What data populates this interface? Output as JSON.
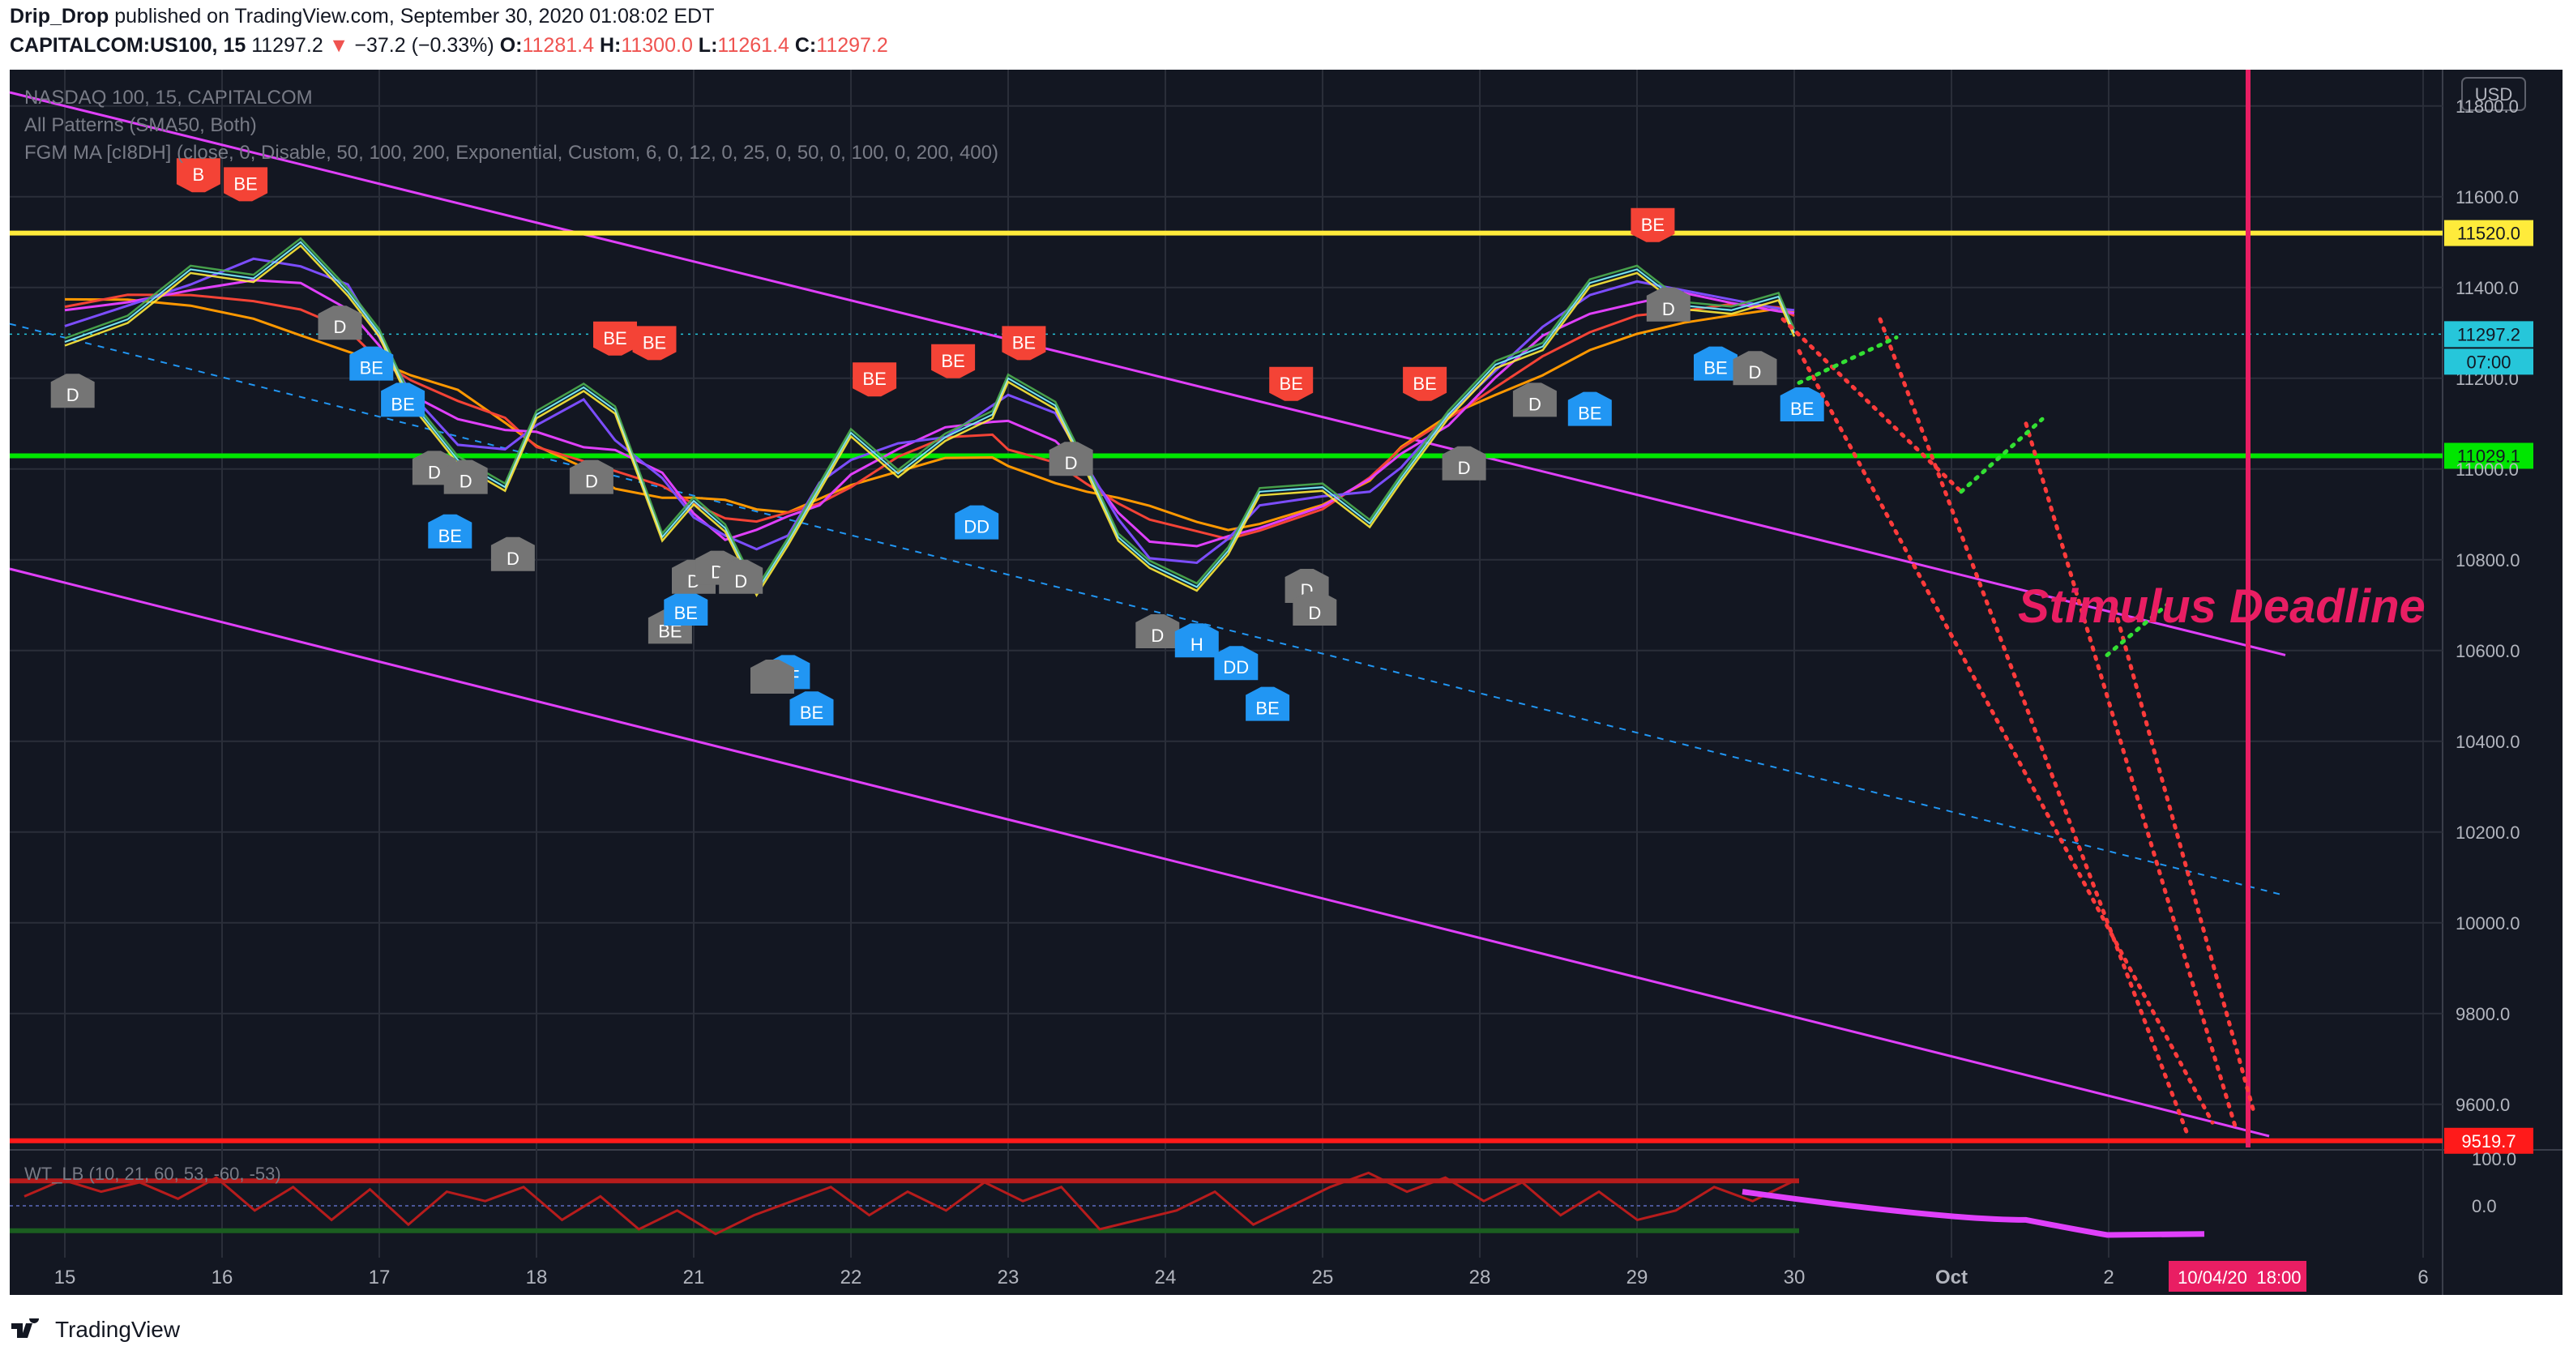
{
  "header": {
    "author": "Drip_Drop",
    "published_text": "published on TradingView.com, September 30, 2020 01:08:02 EDT",
    "symbol": "CAPITALCOM:US100, 15",
    "last": "11297.2",
    "change": "−37.2 (−0.33%)",
    "o_label": "O:",
    "o": "11281.4",
    "h_label": "H:",
    "h": "11300.0",
    "l_label": "L:",
    "l": "11261.4",
    "c_label": "C:",
    "c": "11297.2"
  },
  "legend": {
    "title": "NASDAQ 100, 15, CAPITALCOM",
    "ind1": "All Patterns (SMA50, Both)",
    "ind2": "FGM MA [cI8DH] (close, 0, Disable, 50, 100, 200, Exponential, Custom, 6, 0, 12, 0, 25, 0, 50, 0, 100, 0, 200, 400)",
    "osc": "WT_LB (10, 21, 60, 53, -60, -53)"
  },
  "annotation": "Stimulus Deadline",
  "footer": {
    "brand": "TradingView"
  },
  "colors": {
    "background": "#131722",
    "resistance": "#ffeb3b",
    "support_green": "#00e600",
    "support_red": "#ff1a1a",
    "channel": "#e040fb",
    "deadline": "#e91e63",
    "dotted_red": "#ff3b3b",
    "dotted_green": "#33e033"
  },
  "chart_data": {
    "type": "line",
    "currency": "USD",
    "y_ticks": [
      11800,
      11600,
      11400,
      11200,
      11000,
      10800,
      10600,
      10400,
      10200,
      10000,
      9800,
      9600
    ],
    "ylim": [
      9480,
      11880
    ],
    "x_ticks": [
      "15",
      "16",
      "17",
      "18",
      "21",
      "22",
      "23",
      "24",
      "25",
      "28",
      "29",
      "30",
      "Oct",
      "2",
      "6"
    ],
    "levels": [
      {
        "name": "resistance",
        "value": 11520.0,
        "label": "11520.0"
      },
      {
        "name": "support",
        "value": 11029.1,
        "label": "11029.1"
      },
      {
        "name": "target",
        "value": 9519.7,
        "label": "9519.7"
      }
    ],
    "last_price": {
      "value": 11297.2,
      "label": "11297.2",
      "countdown": "07:00"
    },
    "deadline": {
      "date_label": "10/04/20",
      "time_label": "18:00"
    },
    "price_series": [
      [
        0,
        11280
      ],
      [
        0.4,
        11330
      ],
      [
        0.8,
        11440
      ],
      [
        1.2,
        11420
      ],
      [
        1.5,
        11500
      ],
      [
        1.8,
        11390
      ],
      [
        2.0,
        11300
      ],
      [
        2.2,
        11150
      ],
      [
        2.5,
        11020
      ],
      [
        2.8,
        10960
      ],
      [
        3.0,
        11120
      ],
      [
        3.3,
        11180
      ],
      [
        3.5,
        11130
      ],
      [
        3.8,
        10850
      ],
      [
        4.0,
        10930
      ],
      [
        4.2,
        10870
      ],
      [
        4.4,
        10730
      ],
      [
        4.6,
        10840
      ],
      [
        4.8,
        10960
      ],
      [
        5.0,
        11080
      ],
      [
        5.3,
        10990
      ],
      [
        5.6,
        11070
      ],
      [
        5.9,
        11120
      ],
      [
        6.0,
        11200
      ],
      [
        6.3,
        11140
      ],
      [
        6.5,
        11000
      ],
      [
        6.7,
        10850
      ],
      [
        6.9,
        10790
      ],
      [
        7.2,
        10740
      ],
      [
        7.4,
        10820
      ],
      [
        7.6,
        10950
      ],
      [
        8.0,
        10960
      ],
      [
        8.3,
        10880
      ],
      [
        8.5,
        10980
      ],
      [
        8.8,
        11120
      ],
      [
        9.1,
        11230
      ],
      [
        9.4,
        11270
      ],
      [
        9.7,
        11410
      ],
      [
        10.0,
        11440
      ],
      [
        10.3,
        11360
      ],
      [
        10.6,
        11350
      ],
      [
        10.9,
        11380
      ],
      [
        11.0,
        11300
      ]
    ],
    "oscillator": {
      "ob_level": 53,
      "os_level": -53,
      "ticks": [
        100.0,
        0.0
      ],
      "values": [
        20,
        55,
        30,
        50,
        15,
        60,
        -10,
        40,
        -30,
        35,
        -40,
        30,
        10,
        40,
        -30,
        20,
        -50,
        -10,
        -60,
        -20,
        10,
        40,
        -20,
        30,
        -10,
        50,
        10,
        40,
        -50,
        -30,
        -10,
        30,
        -40,
        0,
        40,
        70,
        30,
        60,
        10,
        50,
        -20,
        30,
        -30,
        -10,
        40,
        10,
        50
      ]
    },
    "patterns": [
      {
        "t": "B",
        "x": 0.85,
        "y": 11610,
        "c": "bear"
      },
      {
        "t": "BE",
        "x": 1.15,
        "y": 11590,
        "c": "bear"
      },
      {
        "t": "D",
        "x": 0.05,
        "y": 11210,
        "c": "neutral"
      },
      {
        "t": "D",
        "x": 1.75,
        "y": 11360,
        "c": "neutral"
      },
      {
        "t": "BE",
        "x": 1.95,
        "y": 11270,
        "c": "bull"
      },
      {
        "t": "BE",
        "x": 2.15,
        "y": 11190,
        "c": "bull"
      },
      {
        "t": "D",
        "x": 2.35,
        "y": 11040,
        "c": "neutral"
      },
      {
        "t": "D",
        "x": 2.55,
        "y": 11020,
        "c": "neutral"
      },
      {
        "t": "BE",
        "x": 2.45,
        "y": 10900,
        "c": "bull"
      },
      {
        "t": "D",
        "x": 2.85,
        "y": 10850,
        "c": "neutral"
      },
      {
        "t": "D",
        "x": 3.35,
        "y": 11020,
        "c": "neutral"
      },
      {
        "t": "BE",
        "x": 3.5,
        "y": 11250,
        "c": "bear"
      },
      {
        "t": "BE",
        "x": 3.75,
        "y": 11240,
        "c": "bear"
      },
      {
        "t": "BE",
        "x": 3.85,
        "y": 10690,
        "c": "neutral"
      },
      {
        "t": "BE",
        "x": 3.95,
        "y": 10730,
        "c": "bull"
      },
      {
        "t": "D",
        "x": 4.0,
        "y": 10800,
        "c": "neutral"
      },
      {
        "t": "D",
        "x": 4.15,
        "y": 10820,
        "c": "neutral"
      },
      {
        "t": "D",
        "x": 4.3,
        "y": 10800,
        "c": "neutral"
      },
      {
        "t": "BF",
        "x": 4.6,
        "y": 10590,
        "c": "bull"
      },
      {
        "t": "BE",
        "x": 4.75,
        "y": 10510,
        "c": "bull"
      },
      {
        "t": "",
        "x": 4.5,
        "y": 10580,
        "c": "neutral"
      },
      {
        "t": "BE",
        "x": 5.15,
        "y": 11160,
        "c": "bear"
      },
      {
        "t": "BE",
        "x": 5.65,
        "y": 11200,
        "c": "bear"
      },
      {
        "t": "BE",
        "x": 6.1,
        "y": 11240,
        "c": "bear"
      },
      {
        "t": "D",
        "x": 6.4,
        "y": 11060,
        "c": "neutral"
      },
      {
        "t": "DD",
        "x": 5.8,
        "y": 10920,
        "c": "bull"
      },
      {
        "t": "D",
        "x": 6.95,
        "y": 10680,
        "c": "neutral"
      },
      {
        "t": "H",
        "x": 7.2,
        "y": 10660,
        "c": "bull"
      },
      {
        "t": "DD",
        "x": 7.45,
        "y": 10610,
        "c": "bull"
      },
      {
        "t": "BE",
        "x": 7.65,
        "y": 10520,
        "c": "bull"
      },
      {
        "t": "BE",
        "x": 7.8,
        "y": 11150,
        "c": "bear"
      },
      {
        "t": "D",
        "x": 7.9,
        "y": 10780,
        "c": "neutral"
      },
      {
        "t": "D",
        "x": 7.95,
        "y": 10730,
        "c": "neutral"
      },
      {
        "t": "BE",
        "x": 8.65,
        "y": 11150,
        "c": "bear"
      },
      {
        "t": "D",
        "x": 8.9,
        "y": 11050,
        "c": "neutral"
      },
      {
        "t": "D",
        "x": 9.35,
        "y": 11190,
        "c": "neutral"
      },
      {
        "t": "BE",
        "x": 9.7,
        "y": 11170,
        "c": "bull"
      },
      {
        "t": "BE",
        "x": 10.1,
        "y": 11500,
        "c": "bear"
      },
      {
        "t": "D",
        "x": 10.2,
        "y": 11400,
        "c": "neutral"
      },
      {
        "t": "BE",
        "x": 10.5,
        "y": 11270,
        "c": "bull"
      },
      {
        "t": "D",
        "x": 10.75,
        "y": 11260,
        "c": "neutral"
      },
      {
        "t": "BE",
        "x": 11.05,
        "y": 11180,
        "c": "bull"
      }
    ]
  }
}
